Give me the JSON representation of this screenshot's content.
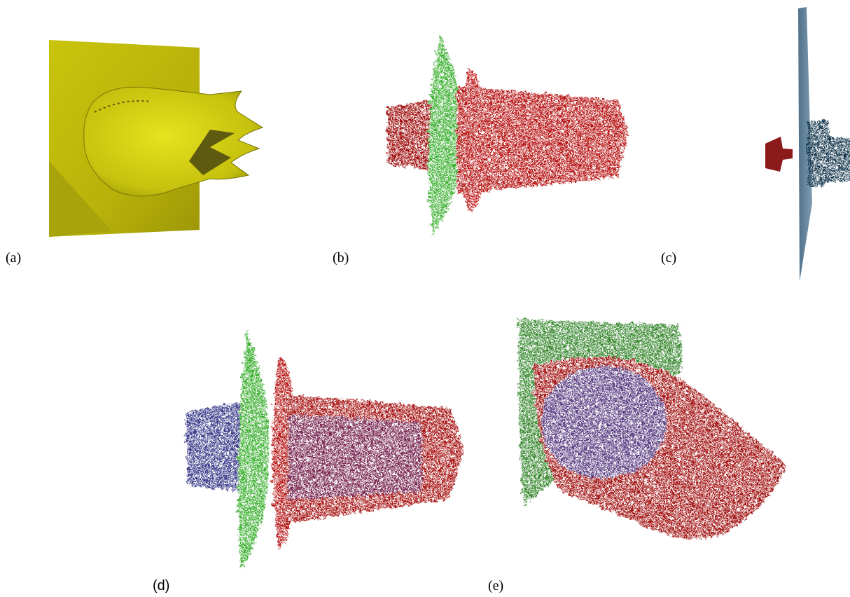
{
  "labels": {
    "a": "(a)",
    "b": "(b)",
    "c": "(c)",
    "d": "(d)",
    "e": "(e)"
  }
}
